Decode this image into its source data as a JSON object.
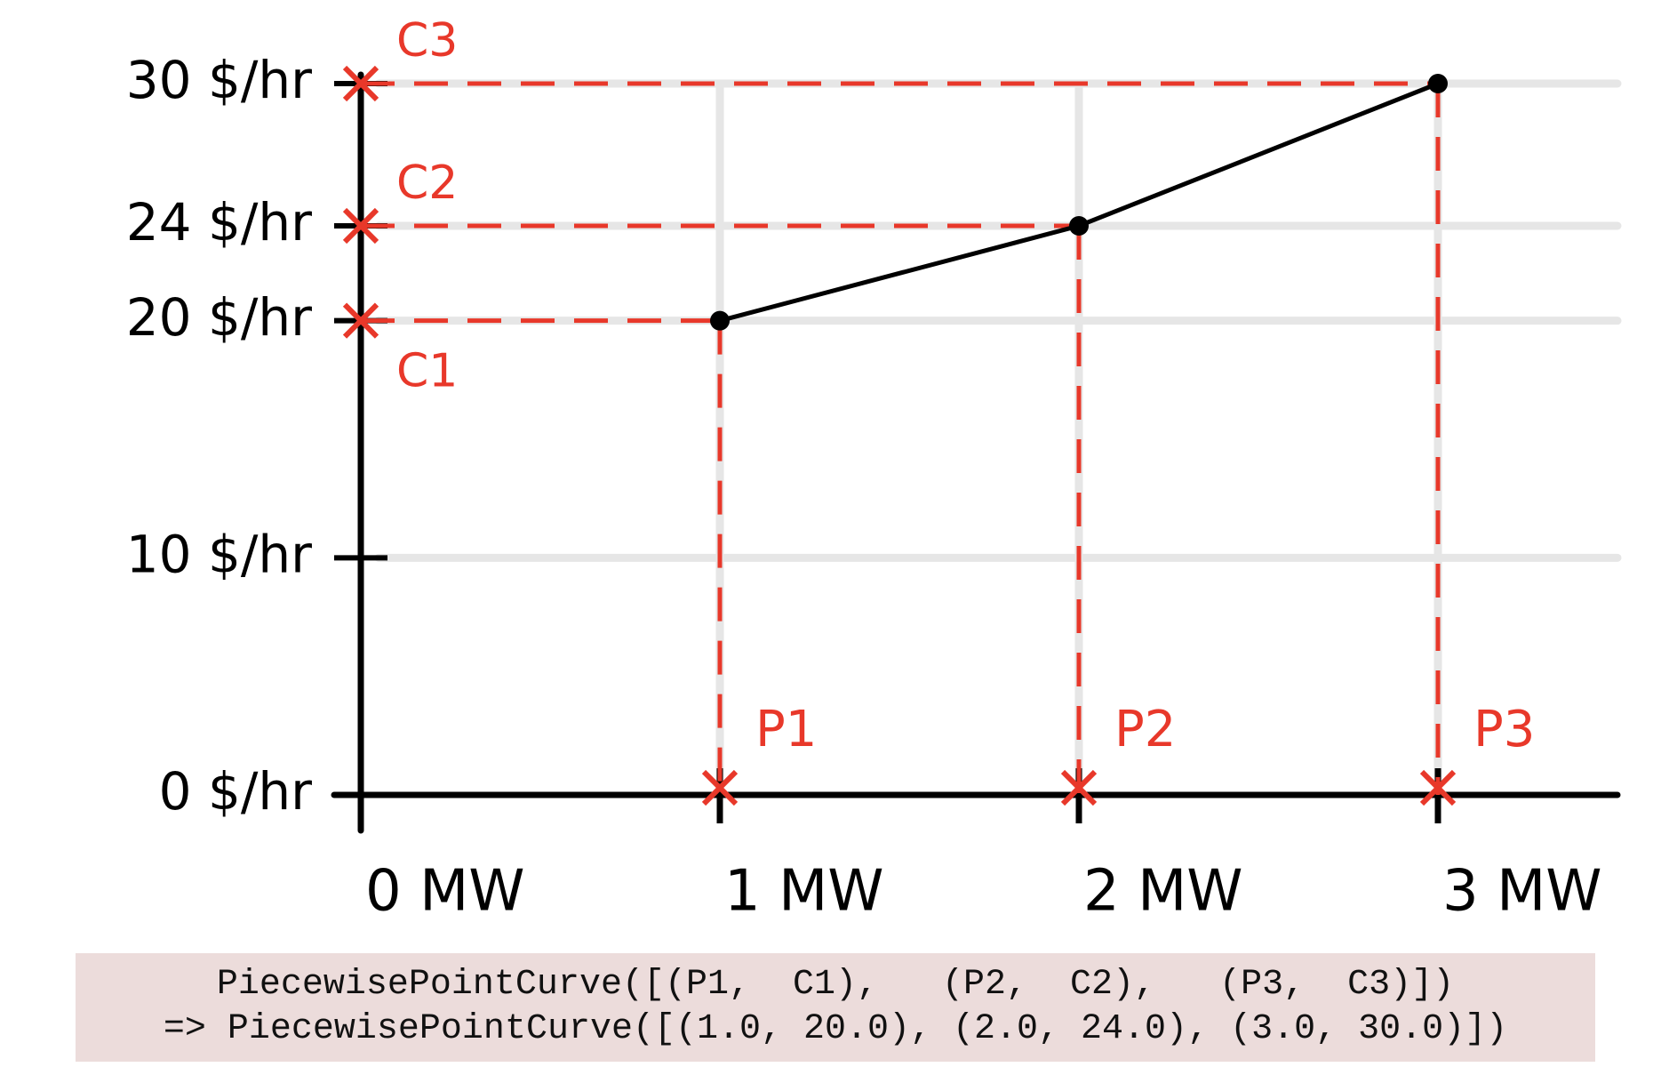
{
  "chart_data": {
    "type": "line",
    "x": [
      1,
      2,
      3
    ],
    "values": [
      20,
      24,
      30
    ],
    "point_labels": {
      "x": [
        "P1",
        "P2",
        "P3"
      ],
      "y": [
        "C1",
        "C2",
        "C3"
      ]
    },
    "color": "#000000",
    "guide_color": "#e8382a",
    "xlim": [
      0,
      3.5
    ],
    "ylim": [
      0,
      30
    ],
    "xticks": [
      {
        "value": 0,
        "label": "0 MW"
      },
      {
        "value": 1,
        "label": "1 MW"
      },
      {
        "value": 2,
        "label": "2 MW"
      },
      {
        "value": 3,
        "label": "3 MW"
      }
    ],
    "yticks": [
      {
        "value": 0,
        "label": "0 $/hr"
      },
      {
        "value": 10,
        "label": "10 $/hr"
      },
      {
        "value": 20,
        "label": "20 $/hr"
      },
      {
        "value": 24,
        "label": "24 $/hr"
      },
      {
        "value": 30,
        "label": "30 $/hr"
      }
    ],
    "grid": true
  },
  "code": {
    "lines": [
      "PiecewisePointCurve([(P1,  C1),   (P2,  C2),   (P3,  C3)])",
      "=> PiecewisePointCurve([(1.0, 20.0), (2.0, 24.0), (3.0, 30.0)])"
    ]
  }
}
